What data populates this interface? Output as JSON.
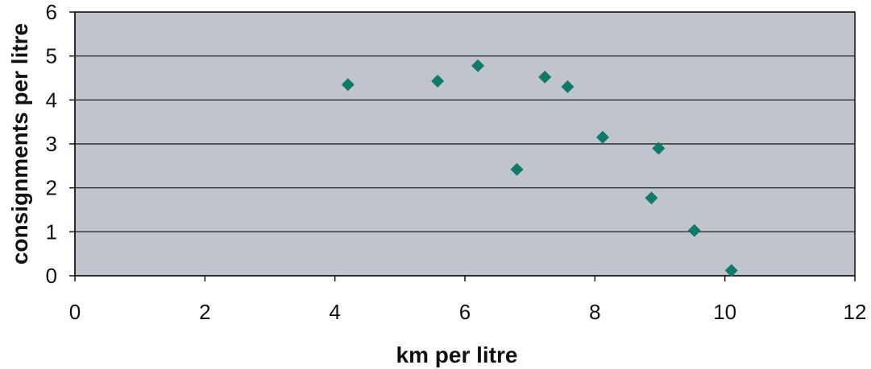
{
  "chart_data": {
    "type": "scatter",
    "title": "",
    "xlabel": "km per litre",
    "ylabel": "consignments per litre",
    "xlim": [
      0,
      12
    ],
    "ylim": [
      0,
      6
    ],
    "x_ticks": [
      0,
      2,
      4,
      6,
      8,
      10,
      12
    ],
    "y_ticks": [
      0,
      1,
      2,
      3,
      4,
      5,
      6
    ],
    "grid": "horizontal",
    "legend": "none",
    "colors": {
      "plot_background": "#c0c4cc",
      "marker": "#0f7a6a",
      "gridline": "#111111",
      "axis": "#111111"
    },
    "marker_shape": "diamond",
    "points": [
      {
        "x": 4.2,
        "y": 4.35
      },
      {
        "x": 5.58,
        "y": 4.43
      },
      {
        "x": 6.2,
        "y": 4.78
      },
      {
        "x": 6.8,
        "y": 2.42
      },
      {
        "x": 7.23,
        "y": 4.52
      },
      {
        "x": 7.58,
        "y": 4.3
      },
      {
        "x": 8.12,
        "y": 3.15
      },
      {
        "x": 8.87,
        "y": 1.77
      },
      {
        "x": 8.98,
        "y": 2.9
      },
      {
        "x": 9.53,
        "y": 1.03
      },
      {
        "x": 10.1,
        "y": 0.12
      }
    ]
  }
}
